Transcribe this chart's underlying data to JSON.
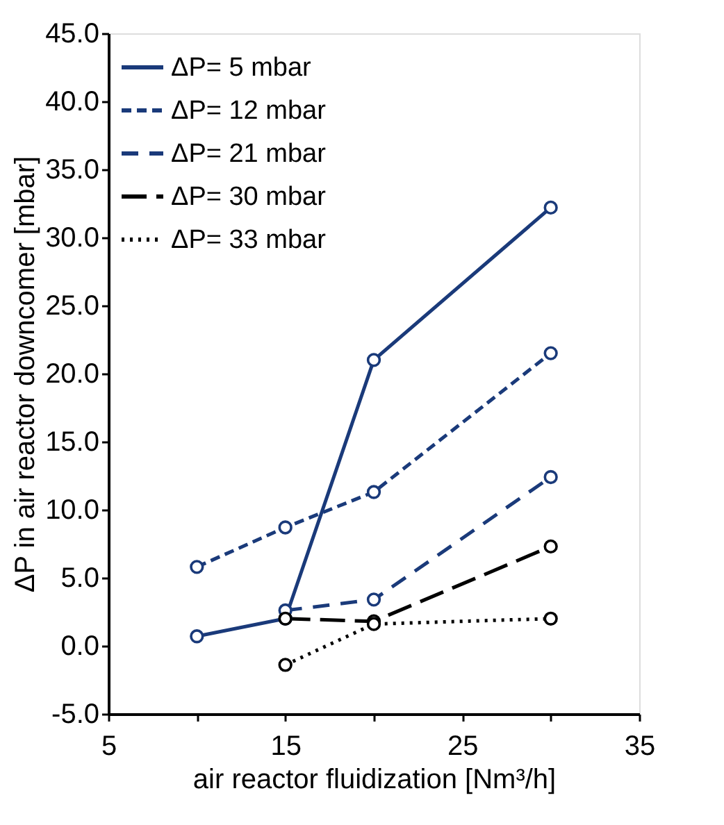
{
  "chart_data": {
    "type": "line",
    "xlabel": "air reactor fluidization  [Nm³/h]",
    "ylabel": "ΔP in air reactor downcomer [mbar]",
    "xlim": [
      5,
      35
    ],
    "xticks": [
      5,
      {
        "value": 10,
        "label": null
      },
      15,
      {
        "value": 20,
        "label": null
      },
      25,
      {
        "value": 30,
        "label": null
      },
      35
    ],
    "ylim": [
      -5,
      45
    ],
    "yticks": [
      {
        "value": -5,
        "label": "-5.0"
      },
      {
        "value": 0,
        "label": "0.0"
      },
      {
        "value": 5,
        "label": "5.0"
      },
      {
        "value": 10,
        "label": "10.0"
      },
      {
        "value": 15,
        "label": "15.0"
      },
      {
        "value": 20,
        "label": "20.0"
      },
      {
        "value": 25,
        "label": "25.0"
      },
      {
        "value": 30,
        "label": "30.0"
      },
      {
        "value": 35,
        "label": "35.0"
      },
      {
        "value": 40,
        "label": "40.0"
      },
      {
        "value": 45,
        "label": "45.0"
      }
    ],
    "grid": false,
    "legend": "top left",
    "marker": "circle",
    "series": [
      {
        "name": "ΔP=   5 mbar",
        "color": "#1a3a7a",
        "line_style": "solid",
        "x": [
          10,
          15,
          20,
          30
        ],
        "values": [
          0.7,
          2.0,
          21.0,
          32.2
        ]
      },
      {
        "name": "ΔP= 12 mbar",
        "color": "#1a3a7a",
        "line_style": "dashed",
        "x": [
          10,
          15,
          20,
          30
        ],
        "values": [
          5.8,
          8.7,
          11.3,
          21.5
        ]
      },
      {
        "name": "ΔP= 21 mbar",
        "color": "#1a3a7a",
        "line_style": "dashed",
        "x": [
          15,
          20,
          30
        ],
        "values": [
          2.6,
          3.4,
          12.4
        ]
      },
      {
        "name": "ΔP= 30 mbar",
        "color": "#000000",
        "line_style": "dashed",
        "x": [
          15,
          20,
          30
        ],
        "values": [
          2.0,
          1.8,
          7.3
        ]
      },
      {
        "name": "ΔP= 33 mbar",
        "color": "#000000",
        "line_style": "dotted",
        "x": [
          15,
          20,
          30
        ],
        "values": [
          -1.4,
          1.6,
          2.0
        ]
      }
    ]
  }
}
